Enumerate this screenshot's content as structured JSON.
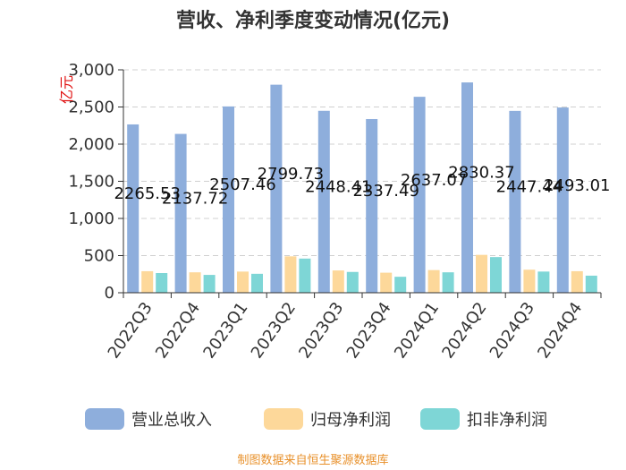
{
  "chart_data": {
    "type": "bar",
    "title": "营收、净利季度变动情况(亿元)",
    "unit_label": "亿元",
    "categories": [
      "2022Q3",
      "2022Q4",
      "2023Q1",
      "2023Q2",
      "2023Q3",
      "2023Q4",
      "2024Q1",
      "2024Q2",
      "2024Q3",
      "2024Q4"
    ],
    "series": [
      {
        "name": "营业总收入",
        "color": "#8eaedc",
        "values": [
          2265.53,
          2137.72,
          2507.46,
          2799.73,
          2448.41,
          2337.49,
          2637.07,
          2830.37,
          2447.44,
          2493.01
        ],
        "labels": [
          "2265.53",
          "2137.72",
          "2507.46",
          "2799.73",
          "2448.41",
          "2337.49",
          "2637.07",
          "2830.37",
          "2447.44",
          "2493.01"
        ]
      },
      {
        "name": "归母净利润",
        "color": "#fdd89a",
        "values": [
          290,
          275,
          285,
          490,
          300,
          270,
          305,
          510,
          310,
          290
        ]
      },
      {
        "name": "扣非净利润",
        "color": "#7ed6d6",
        "values": [
          265,
          240,
          255,
          460,
          280,
          215,
          275,
          480,
          285,
          230
        ]
      }
    ],
    "ylim": [
      0,
      3000
    ],
    "yticks": [
      0,
      500,
      1000,
      1500,
      2000,
      2500,
      3000
    ],
    "ytick_labels": [
      "0",
      "500",
      "1,000",
      "1,500",
      "2,000",
      "2,500",
      "3,000"
    ],
    "grid": true,
    "legend_position": "bottom"
  },
  "footer": {
    "source": "制图数据来自恒生聚源数据库"
  }
}
